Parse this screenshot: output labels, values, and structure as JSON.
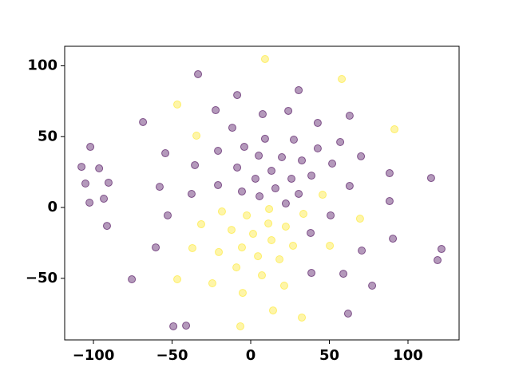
{
  "chart_data": {
    "type": "scatter",
    "xlim": [
      -118.3,
      132.5
    ],
    "ylim": [
      -93.5,
      113.8
    ],
    "xticks": [
      {
        "value": -100,
        "label": "−100"
      },
      {
        "value": -50,
        "label": "−50"
      },
      0,
      50,
      100
    ],
    "yticks": [
      {
        "value": -50,
        "label": "−50"
      },
      0,
      50,
      100
    ],
    "alpha": 0.4,
    "series": [
      {
        "color": "#440154",
        "x": [
          -107.6,
          -102.0,
          -105.1,
          -102.5,
          -96.4,
          -90.4,
          -93.4,
          -91.4,
          -75.6,
          -68.5,
          -54.3,
          -57.9,
          -52.8,
          -60.4,
          -49.2,
          -41.1,
          -37.6,
          -35.5,
          -33.5,
          -22.3,
          -20.8,
          -20.8,
          -11.7,
          -8.6,
          -8.6,
          -5.6,
          -4.1,
          3.0,
          5.1,
          5.6,
          7.6,
          9.1,
          13.2,
          15.7,
          19.8,
          22.3,
          23.9,
          25.9,
          27.4,
          30.5,
          30.5,
          32.5,
          38.1,
          38.6,
          38.6,
          42.6,
          42.6,
          50.8,
          51.8,
          56.9,
          58.9,
          61.9,
          62.9,
          62.9,
          70.1,
          70.6,
          77.2,
          88.3,
          88.3,
          90.4,
          114.7,
          118.8,
          121.3
        ],
        "values": [
          28.7,
          42.8,
          16.9,
          3.4,
          27.6,
          17.5,
          6.2,
          -13.0,
          -50.7,
          60.3,
          38.3,
          14.6,
          -5.6,
          -28.2,
          -83.9,
          -83.4,
          9.6,
          29.9,
          94.1,
          68.7,
          40.0,
          15.8,
          56.3,
          79.4,
          28.2,
          11.3,
          42.8,
          20.3,
          36.6,
          7.9,
          65.9,
          48.5,
          25.9,
          13.5,
          35.5,
          2.8,
          68.2,
          20.3,
          47.9,
          82.8,
          9.6,
          33.2,
          -18.0,
          22.5,
          -46.2,
          59.7,
          41.7,
          -5.6,
          31.0,
          46.2,
          -46.8,
          -74.9,
          15.2,
          64.8,
          36.1,
          -30.4,
          -55.2,
          24.2,
          4.5,
          -22.0,
          20.8,
          -37.2,
          -29.3
        ]
      },
      {
        "color": "#fde725",
        "x": [
          9.1,
          -46.7,
          -34.5,
          -31.5,
          -18.3,
          -12.2,
          -20.3,
          -9.1,
          -5.6,
          -5.1,
          -6.6,
          -2.5,
          1.5,
          4.6,
          7.1,
          11.2,
          11.7,
          13.2,
          14.2,
          18.3,
          22.3,
          21.3,
          26.9,
          32.5,
          33.5,
          45.7,
          50.3,
          57.9,
          69.5,
          91.4,
          -24.4,
          -37.1,
          -46.7
        ],
        "values": [
          104.8,
          72.7,
          50.7,
          -11.8,
          -2.8,
          -15.8,
          -31.5,
          -42.3,
          -28.2,
          -60.3,
          -83.9,
          -5.6,
          -18.6,
          -34.4,
          -47.9,
          -11.3,
          -1.1,
          -23.1,
          -72.7,
          -36.6,
          -13.5,
          -55.2,
          -27.0,
          -77.7,
          -4.5,
          9.0,
          -27.0,
          90.7,
          -7.9,
          55.2,
          -53.5,
          -28.7,
          -50.7
        ]
      }
    ]
  }
}
